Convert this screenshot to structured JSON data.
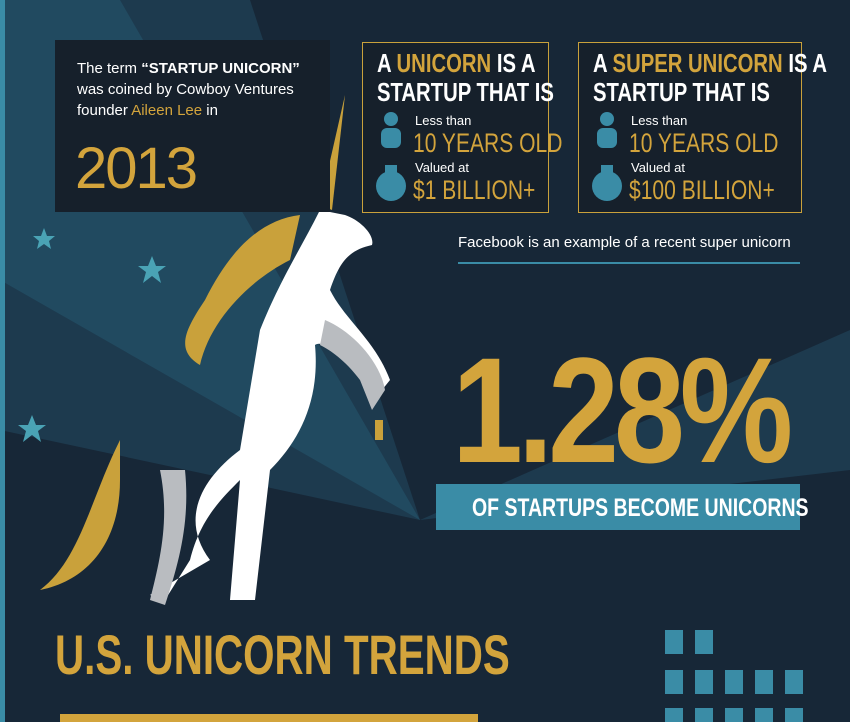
{
  "intro": {
    "line1_pre": "The term",
    "line1_term": "“STARTUP UNICORN”",
    "line2": "was coined by Cowboy Ventures",
    "line3_pre": "founder",
    "founder": "Aileen Lee",
    "line3_post": "in",
    "year": "2013"
  },
  "unicorn_box": {
    "title_pre": "A",
    "title_key": "UNICORN",
    "title_post": "IS A",
    "title_line2": "STARTUP THAT IS",
    "age_label": "Less than",
    "age_value": "10 YEARS OLD",
    "value_label": "Valued at",
    "value_value": "$1 BILLION+"
  },
  "super_unicorn_box": {
    "title_pre": "A",
    "title_key": "SUPER UNICORN",
    "title_post": "IS A",
    "title_line2": "STARTUP THAT IS",
    "age_label": "Less than",
    "age_value": "10 YEARS OLD",
    "value_label": "Valued at",
    "value_value": "$100 BILLION+"
  },
  "example_note": "Facebook is an example of a recent super unicorn",
  "stat": {
    "figure": "1.28%",
    "caption": "OF STARTUPS BECOME UNICORNS"
  },
  "section_title": "U.S. UNICORN TRENDS"
}
